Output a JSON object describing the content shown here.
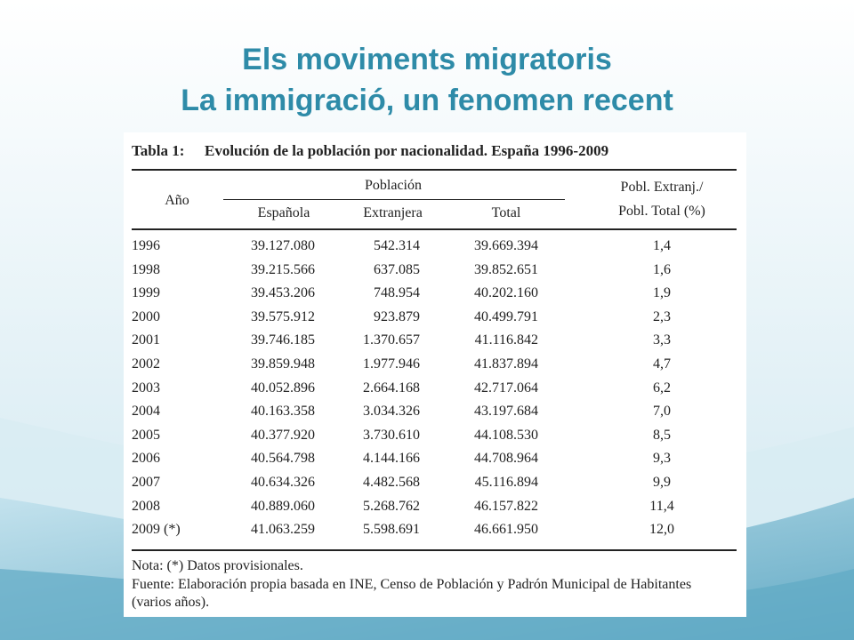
{
  "slide": {
    "title_line1": "Els moviments migratoris",
    "title_line2": "La immigració, un fenomen recent"
  },
  "table": {
    "label": "Tabla 1:",
    "caption": "Evolución de la población por nacionalidad. España 1996-2009",
    "headers": {
      "year": "Año",
      "population": "Población",
      "spanish": "Española",
      "foreign": "Extranjera",
      "total": "Total",
      "ratio_line1": "Pobl. Extranj./",
      "ratio_line2": "Pobl. Total (%)"
    },
    "rows": [
      {
        "year": "1996",
        "spanish": "39.127.080",
        "foreign": "542.314",
        "total": "39.669.394",
        "ratio": "1,4"
      },
      {
        "year": "1998",
        "spanish": "39.215.566",
        "foreign": "637.085",
        "total": "39.852.651",
        "ratio": "1,6"
      },
      {
        "year": "1999",
        "spanish": "39.453.206",
        "foreign": "748.954",
        "total": "40.202.160",
        "ratio": "1,9"
      },
      {
        "year": "2000",
        "spanish": "39.575.912",
        "foreign": "923.879",
        "total": "40.499.791",
        "ratio": "2,3"
      },
      {
        "year": "2001",
        "spanish": "39.746.185",
        "foreign": "1.370.657",
        "total": "41.116.842",
        "ratio": "3,3"
      },
      {
        "year": "2002",
        "spanish": "39.859.948",
        "foreign": "1.977.946",
        "total": "41.837.894",
        "ratio": "4,7"
      },
      {
        "year": "2003",
        "spanish": "40.052.896",
        "foreign": "2.664.168",
        "total": "42.717.064",
        "ratio": "6,2"
      },
      {
        "year": "2004",
        "spanish": "40.163.358",
        "foreign": "3.034.326",
        "total": "43.197.684",
        "ratio": "7,0"
      },
      {
        "year": "2005",
        "spanish": "40.377.920",
        "foreign": "3.730.610",
        "total": "44.108.530",
        "ratio": "8,5"
      },
      {
        "year": "2006",
        "spanish": "40.564.798",
        "foreign": "4.144.166",
        "total": "44.708.964",
        "ratio": "9,3"
      },
      {
        "year": "2007",
        "spanish": "40.634.326",
        "foreign": "4.482.568",
        "total": "45.116.894",
        "ratio": "9,9"
      },
      {
        "year": "2008",
        "spanish": "40.889.060",
        "foreign": "5.268.762",
        "total": "46.157.822",
        "ratio": "11,4"
      },
      {
        "year": "2009 (*)",
        "spanish": "41.063.259",
        "foreign": "5.598.691",
        "total": "46.661.950",
        "ratio": "12,0"
      }
    ],
    "note": "Nota: (*) Datos provisionales.",
    "source_line1": "Fuente: Elaboración propia basada en INE, Censo de Población y Padrón Municipal de Habitantes",
    "source_line2": "(varios años)."
  },
  "colors": {
    "title": "#2e8ba8",
    "wave_light": "#d8ecf3",
    "wave_mid": "#a9d3e2",
    "wave_dark": "#5fa9c4"
  }
}
